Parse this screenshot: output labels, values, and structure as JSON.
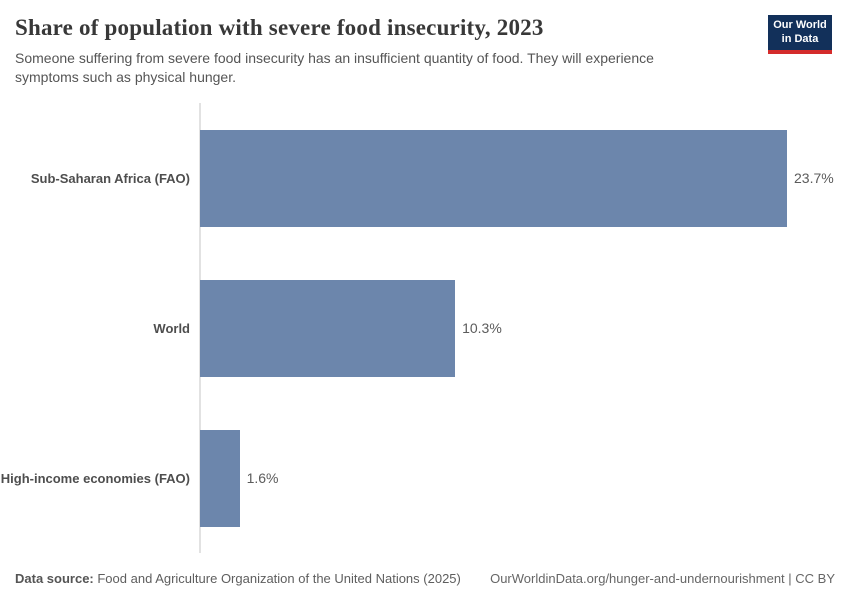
{
  "header": {
    "title": "Share of population with severe food insecurity, 2023",
    "subtitle": "Someone suffering from severe food insecurity has an insufficient quantity of food. They will experience symptoms such as physical hunger.",
    "logo": {
      "line1": "Our World",
      "line2": "in Data",
      "bg_color": "#12305a",
      "accent_color": "#d42b2b"
    }
  },
  "chart_data": {
    "type": "bar",
    "orientation": "horizontal",
    "title": "Share of population with severe food insecurity, 2023",
    "categories": [
      "Sub-Saharan Africa (FAO)",
      "World",
      "High-income economies (FAO)"
    ],
    "values": [
      23.7,
      10.3,
      1.6
    ],
    "value_labels": [
      "23.7%",
      "10.3%",
      "1.6%"
    ],
    "unit": "%",
    "xlabel": "",
    "ylabel": "",
    "xlim": [
      0,
      26
    ],
    "grid": false,
    "legend": false,
    "bar_color": "#6c86ac",
    "axis_line_color": "#e2e2e2"
  },
  "footer": {
    "source_label": "Data source:",
    "source_text": " Food and Agriculture Organization of the United Nations (2025)",
    "credit": "OurWorldinData.org/hunger-and-undernourishment | CC BY"
  }
}
